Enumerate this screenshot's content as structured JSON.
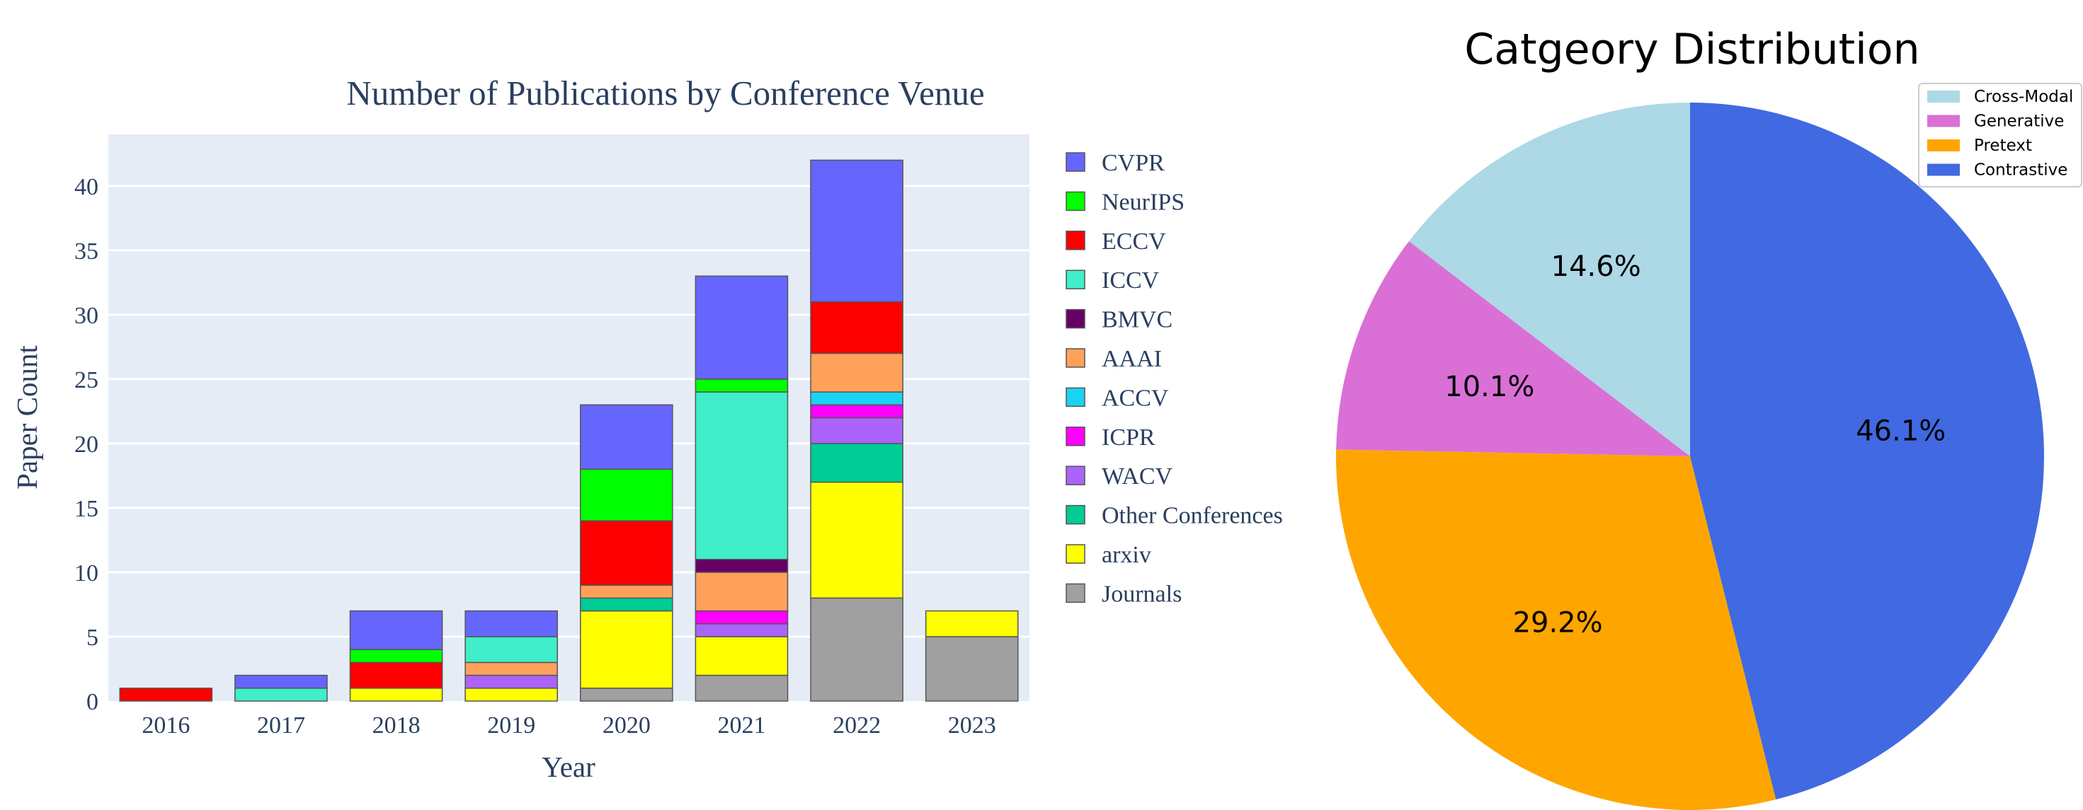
{
  "chart_data": [
    {
      "type": "bar",
      "stacked": true,
      "title": "Number of Publications by Conference Venue",
      "xlabel": "Year",
      "ylabel": "Paper Count",
      "categories": [
        "2016",
        "2017",
        "2018",
        "2019",
        "2020",
        "2021",
        "2022",
        "2023"
      ],
      "ylim": [
        0,
        44
      ],
      "yticks": [
        0,
        5,
        10,
        15,
        20,
        25,
        30,
        35,
        40
      ],
      "grid": true,
      "plot_background": "#e5ecf6",
      "legend_position": "right",
      "series": [
        {
          "name": "Journals",
          "color": "#a0a0a0",
          "values": [
            0,
            0,
            0,
            0,
            1,
            2,
            8,
            5
          ]
        },
        {
          "name": "arxiv",
          "color": "#ffff00",
          "values": [
            0,
            0,
            1,
            1,
            6,
            3,
            9,
            2
          ]
        },
        {
          "name": "Other Conferences",
          "color": "#00cc96",
          "values": [
            0,
            0,
            0,
            0,
            1,
            0,
            3,
            0
          ]
        },
        {
          "name": "WACV",
          "color": "#ab63fa",
          "values": [
            0,
            0,
            0,
            1,
            0,
            1,
            2,
            0
          ]
        },
        {
          "name": "ICPR",
          "color": "#ff00ff",
          "values": [
            0,
            0,
            0,
            0,
            0,
            1,
            1,
            0
          ]
        },
        {
          "name": "ACCV",
          "color": "#19d3f3",
          "values": [
            0,
            0,
            0,
            0,
            0,
            0,
            1,
            0
          ]
        },
        {
          "name": "AAAI",
          "color": "#ffa15a",
          "values": [
            0,
            0,
            0,
            1,
            1,
            3,
            3,
            0
          ]
        },
        {
          "name": "BMVC",
          "color": "#660066",
          "values": [
            0,
            0,
            0,
            0,
            0,
            1,
            0,
            0
          ]
        },
        {
          "name": "ICCV",
          "color": "#40eec9",
          "values": [
            0,
            1,
            0,
            2,
            0,
            13,
            0,
            0
          ]
        },
        {
          "name": "ECCV",
          "color": "#ff0000",
          "values": [
            1,
            0,
            2,
            0,
            5,
            0,
            4,
            0
          ]
        },
        {
          "name": "NeurIPS",
          "color": "#00ff00",
          "values": [
            0,
            0,
            1,
            0,
            4,
            1,
            0,
            0
          ]
        },
        {
          "name": "CVPR",
          "color": "#6666ff",
          "values": [
            0,
            1,
            3,
            2,
            5,
            8,
            11,
            0
          ]
        }
      ],
      "legend_order": [
        "CVPR",
        "NeurIPS",
        "ECCV",
        "ICCV",
        "BMVC",
        "AAAI",
        "ACCV",
        "ICPR",
        "WACV",
        "Other Conferences",
        "arxiv",
        "Journals"
      ]
    },
    {
      "type": "pie",
      "title": "Catgeory Distribution",
      "start_angle_deg": 90,
      "direction": "counterclockwise",
      "legend_position": "top-right",
      "slices": [
        {
          "label": "Cross-Modal",
          "value": 14.6,
          "pct_label": "14.6%",
          "color": "#add8e6"
        },
        {
          "label": "Generative",
          "value": 10.1,
          "pct_label": "10.1%",
          "color": "#da70d6"
        },
        {
          "label": "Pretext",
          "value": 29.2,
          "pct_label": "29.2%",
          "color": "#ffa500"
        },
        {
          "label": "Contrastive",
          "value": 46.1,
          "pct_label": "46.1%",
          "color": "#4169e1"
        }
      ]
    }
  ]
}
